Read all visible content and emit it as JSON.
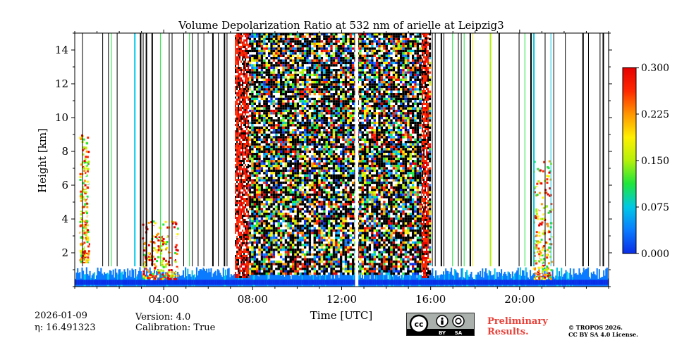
{
  "chart_data": {
    "type": "heatmap",
    "title": "Volume Depolarization Ratio at 532 nm of arielle at Leipzig3",
    "xlabel": "Time [UTC]",
    "ylabel": "Height [km]",
    "xlim": [
      0,
      24
    ],
    "ylim": [
      0,
      15
    ],
    "x_ticks": [
      4,
      8,
      12,
      16,
      20
    ],
    "x_tick_labels": [
      "04:00",
      "08:00",
      "12:00",
      "16:00",
      "20:00"
    ],
    "y_ticks": [
      2,
      4,
      6,
      8,
      10,
      12,
      14
    ],
    "y_tick_labels": [
      "2",
      "4",
      "6",
      "8",
      "10",
      "12",
      "14"
    ],
    "colorbar": {
      "range": [
        0.0,
        0.3
      ],
      "ticks": [
        0.0,
        0.075,
        0.15,
        0.225,
        0.3
      ],
      "tick_labels": [
        "0.000",
        "0.075",
        "0.150",
        "0.225",
        "0.300"
      ],
      "colormap": [
        "#0a2de6",
        "#0a7bff",
        "#00c8e6",
        "#1ee63c",
        "#b4f00a",
        "#fff000",
        "#ff9600",
        "#ff2800",
        "#e60000"
      ]
    },
    "regions": [
      {
        "name": "boundary layer",
        "time_range": [
          0,
          24
        ],
        "height_range": [
          0,
          1.4
        ],
        "value": 0.02
      },
      {
        "name": "noisy daytime signal",
        "time_range": [
          7.5,
          16
        ],
        "height_range": [
          0.8,
          15
        ],
        "value": "noise"
      },
      {
        "name": "high depolarization band",
        "time_range": [
          7.2,
          7.8
        ],
        "height_range": [
          0.5,
          15
        ],
        "value": 0.25
      },
      {
        "name": "high depolarization band",
        "time_range": [
          15.6,
          15.9
        ],
        "height_range": [
          0.5,
          15
        ],
        "value": 0.25
      },
      {
        "name": "aerosol layer",
        "time_range": [
          3.0,
          4.6
        ],
        "height_range": [
          0.5,
          4.0
        ],
        "value": 0.22
      },
      {
        "name": "aerosol layer",
        "time_range": [
          20.6,
          21.4
        ],
        "height_range": [
          0.5,
          7.5
        ],
        "value": 0.2
      },
      {
        "name": "cloud base",
        "time_range": [
          0.2,
          0.6
        ],
        "height_range": [
          1.5,
          9.0
        ],
        "value": 0.2
      },
      {
        "name": "data gap",
        "time_range": [
          12.6,
          12.75
        ],
        "height_range": [
          0,
          15
        ],
        "value": null
      }
    ]
  },
  "info": {
    "date": "2026-01-09",
    "eta": "η: 16.491323",
    "version": "Version: 4.0",
    "calibration": "Calibration: True"
  },
  "license": {
    "badge_cc": "cc",
    "badge_by": "BY",
    "badge_sa": "SA",
    "preliminary_line1": "Preliminary",
    "preliminary_line2": "Results.",
    "copyright_line1": "© TROPOS 2026.",
    "copyright_line2": "CC BY SA 4.0 License."
  }
}
